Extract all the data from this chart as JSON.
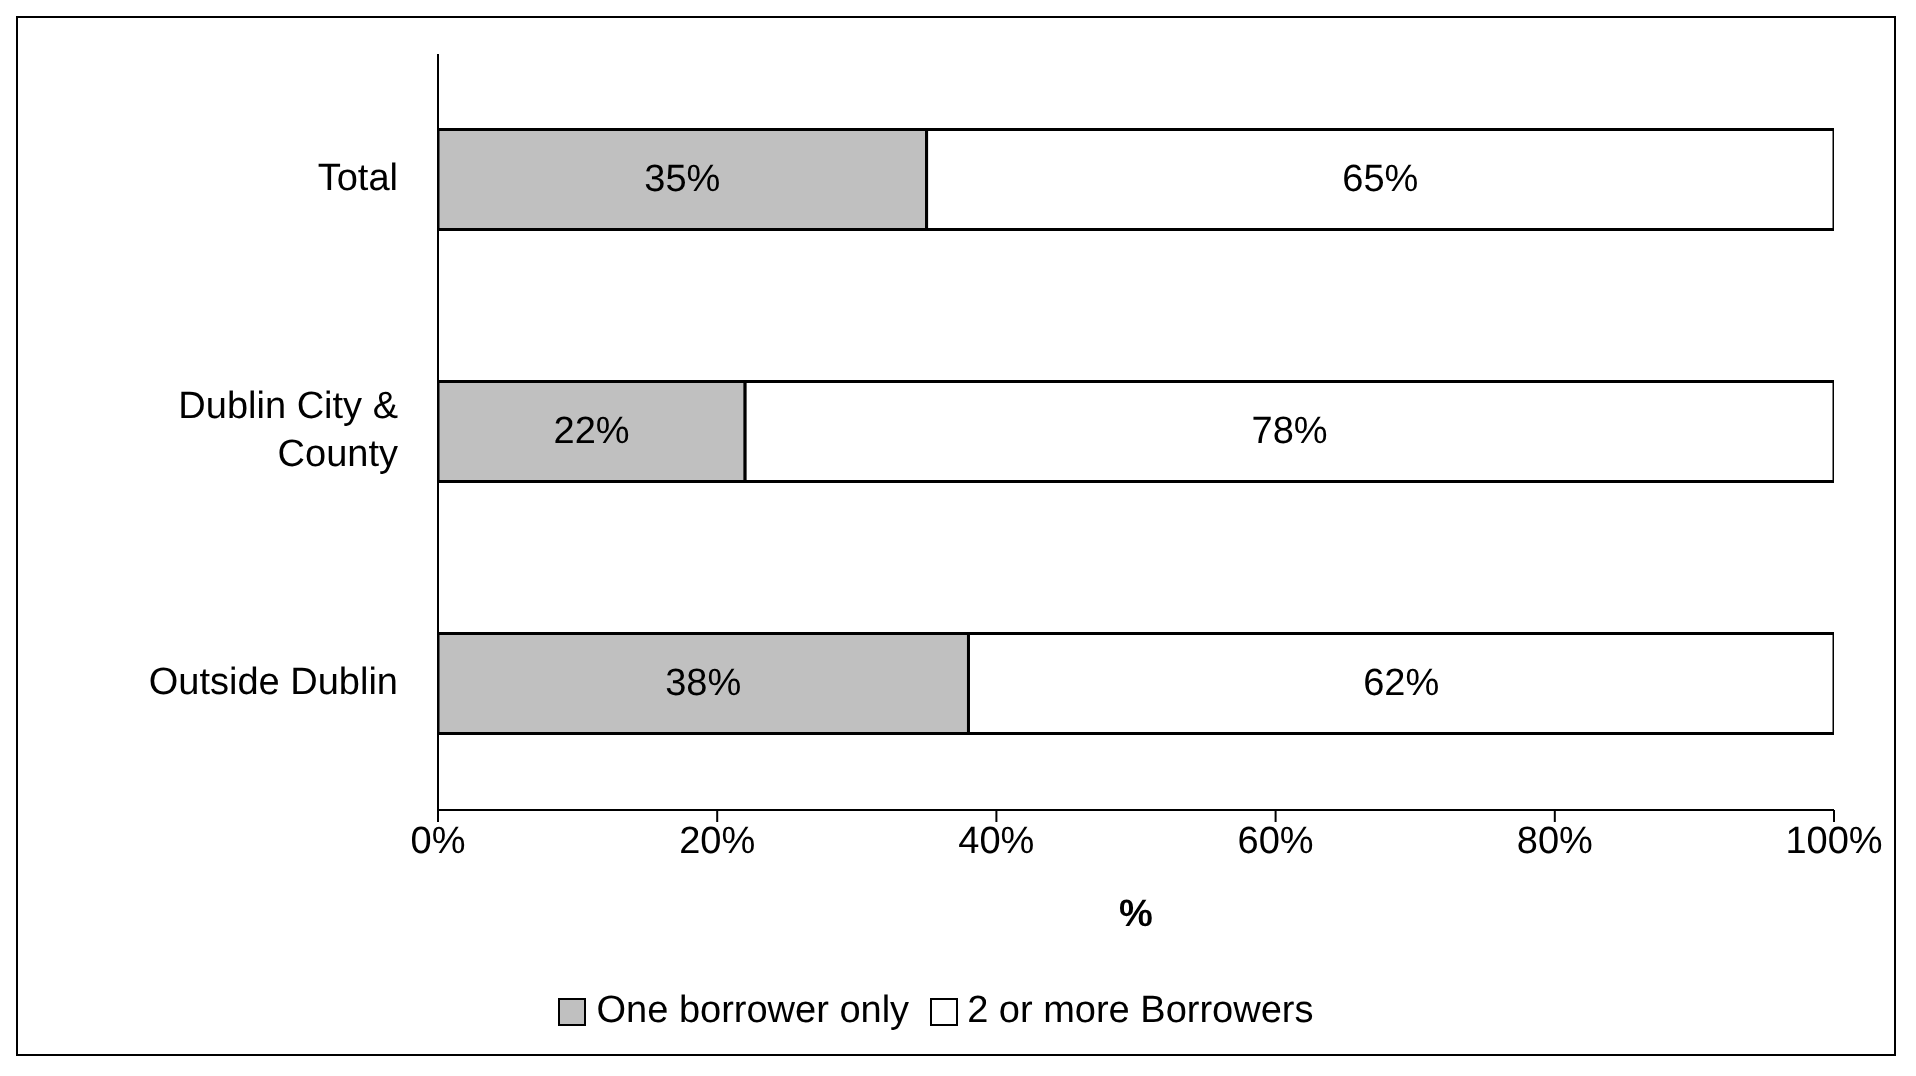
{
  "chart_data": {
    "type": "bar",
    "orientation": "horizontal",
    "stacked": true,
    "categories": [
      "Total",
      "Dublin City & County",
      "Outside Dublin"
    ],
    "series": [
      {
        "name": "One borrower only",
        "color": "#c0c0c0",
        "values": [
          35,
          22,
          38
        ],
        "value_labels": [
          "35%",
          "22%",
          "38%"
        ]
      },
      {
        "name": "2 or more Borrowers",
        "color": "#ffffff",
        "values": [
          65,
          78,
          62
        ],
        "value_labels": [
          "65%",
          "78%",
          "62%"
        ]
      }
    ],
    "xlim": [
      0,
      100
    ],
    "xticks": [
      {
        "value": 0,
        "label": "0%"
      },
      {
        "value": 20,
        "label": "20%"
      },
      {
        "value": 40,
        "label": "40%"
      },
      {
        "value": 60,
        "label": "60%"
      },
      {
        "value": 80,
        "label": "80%"
      },
      {
        "value": 100,
        "label": "100%"
      }
    ],
    "xlabel": "%",
    "legend": "bottom",
    "grid": false
  }
}
